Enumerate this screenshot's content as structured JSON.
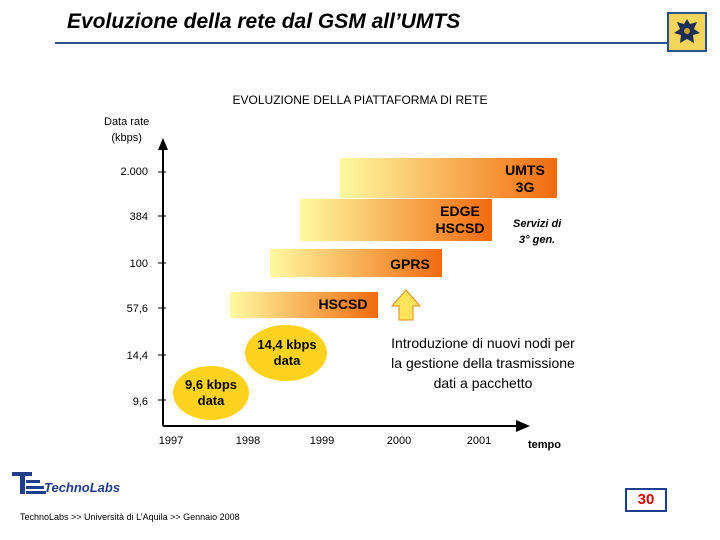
{
  "header": {
    "title": "Evoluzione della rete dal GSM all’UMTS"
  },
  "diagram": {
    "subtitle": "EVOLUZIONE DELLA PIATTAFORMA DI RETE",
    "y_axis_label_line1": "Data rate",
    "y_axis_label_line2": "(kbps)",
    "y_ticks": [
      "2.000",
      "384",
      "100",
      "57,6",
      "14,4",
      "9,6"
    ],
    "x_ticks": [
      "1997",
      "1998",
      "1999",
      "2000",
      "2001"
    ],
    "x_axis_label": "tempo",
    "nodes": {
      "umts_line1": "UMTS",
      "umts_line2": "3G",
      "edge_line1": "EDGE",
      "edge_line2": "HSCSD",
      "gprs": "GPRS",
      "hscsd": "HSCSD",
      "data144_line1": "14,4  kbps",
      "data144_line2": "data",
      "data96_line1": "9,6 kbps",
      "data96_line2": "data"
    },
    "servizi_line1": "Servizi di",
    "servizi_line2": "3° gen.",
    "intro_text_line1": "Introduzione di nuovi nodi per",
    "intro_text_line2": "la gestione della trasmissione",
    "intro_text_line3": "dati a pacchetto",
    "colors": {
      "gradient_orange": "#f26b0f",
      "gradient_yellow": "#fff9a0",
      "ellipse_yellow": "#ffd21e",
      "arrow_yellow": "#ffe45c",
      "axis": "#000000"
    }
  },
  "footer": {
    "logo_text": "TechnoLabs",
    "text": "TechnoLabs >> Università di L’Aquila >> Gennaio 2008",
    "page_number": "30"
  }
}
